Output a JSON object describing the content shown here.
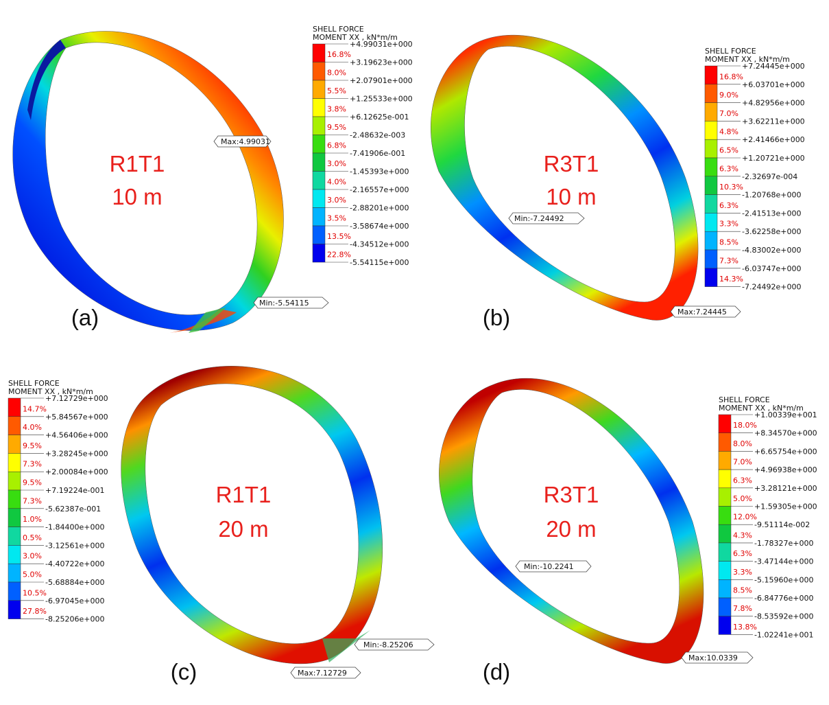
{
  "colors": {
    "legend_bands": [
      "#ff0000",
      "#ff5a00",
      "#ffaa00",
      "#ffff00",
      "#a8f000",
      "#38dd10",
      "#10c840",
      "#10d8a0",
      "#00e8f0",
      "#00b4ff",
      "#0060ff",
      "#0000ee"
    ]
  },
  "panels": [
    {
      "id": "a",
      "letter": "(a)",
      "ring_name": "R1T1",
      "ring_size": "10 m",
      "legend": {
        "title_line1": "SHELL FORCE",
        "title_line2": "MOMENT XX , kN*m/m",
        "values": [
          "+4.99031e+000",
          "+3.19623e+000",
          "+2.07901e+000",
          "+1.25533e+000",
          "+6.12625e-001",
          "-2.48632e-003",
          "-7.41906e-001",
          "-1.45393e+000",
          "-2.16557e+000",
          "-2.88201e+000",
          "-3.58674e+000",
          "-4.34512e+000",
          "-5.54115e+000"
        ],
        "percents": [
          "16.8%",
          "8.0%",
          "5.5%",
          "3.8%",
          "9.5%",
          "6.8%",
          "3.0%",
          "4.0%",
          "3.0%",
          "3.5%",
          "13.5%",
          "22.8%"
        ]
      },
      "callouts": {
        "max": "Max:4.99031",
        "min": "Min:-5.54115"
      }
    },
    {
      "id": "b",
      "letter": "(b)",
      "ring_name": "R3T1",
      "ring_size": "10 m",
      "legend": {
        "title_line1": "SHELL FORCE",
        "title_line2": "MOMENT XX , kN*m/m",
        "values": [
          "+7.24445e+000",
          "+6.03701e+000",
          "+4.82956e+000",
          "+3.62211e+000",
          "+2.41466e+000",
          "+1.20721e+000",
          "-2.32697e-004",
          "-1.20768e+000",
          "-2.41513e+000",
          "-3.62258e+000",
          "-4.83002e+000",
          "-6.03747e+000",
          "-7.24492e+000"
        ],
        "percents": [
          "16.8%",
          "9.0%",
          "7.0%",
          "4.8%",
          "6.5%",
          "6.3%",
          "10.3%",
          "6.3%",
          "3.3%",
          "8.5%",
          "7.3%",
          "14.3%"
        ]
      },
      "callouts": {
        "max": "Max:7.24445",
        "min": "Min:-7.24492"
      }
    },
    {
      "id": "c",
      "letter": "(c)",
      "ring_name": "R1T1",
      "ring_size": "20 m",
      "legend": {
        "title_line1": "SHELL FORCE",
        "title_line2": "MOMENT XX , kN*m/m",
        "values": [
          "+7.12729e+000",
          "+5.84567e+000",
          "+4.56406e+000",
          "+3.28245e+000",
          "+2.00084e+000",
          "+7.19224e-001",
          "-5.62387e-001",
          "-1.84400e+000",
          "-3.12561e+000",
          "-4.40722e+000",
          "-5.68884e+000",
          "-6.97045e+000",
          "-8.25206e+000"
        ],
        "percents": [
          "14.7%",
          "4.0%",
          "9.5%",
          "7.3%",
          "9.5%",
          "7.3%",
          "1.0%",
          "0.5%",
          "3.0%",
          "5.0%",
          "10.5%",
          "27.8%"
        ]
      },
      "callouts": {
        "max": "Max:7.12729",
        "min": "Min:-8.25206"
      }
    },
    {
      "id": "d",
      "letter": "(d)",
      "ring_name": "R3T1",
      "ring_size": "20 m",
      "legend": {
        "title_line1": "SHELL FORCE",
        "title_line2": "MOMENT XX , kN*m/m",
        "values": [
          "+1.00339e+001",
          "+8.34570e+000",
          "+6.65754e+000",
          "+4.96938e+000",
          "+3.28121e+000",
          "+1.59305e+000",
          "-9.51114e-002",
          "-1.78327e+000",
          "-3.47144e+000",
          "-5.15960e+000",
          "-6.84776e+000",
          "-8.53592e+000",
          "-1.02241e+001"
        ],
        "percents": [
          "18.0%",
          "8.0%",
          "7.0%",
          "6.3%",
          "5.0%",
          "12.0%",
          "4.3%",
          "6.3%",
          "3.3%",
          "8.5%",
          "7.8%",
          "13.8%"
        ]
      },
      "callouts": {
        "max": "Max:10.0339",
        "min": "Min:-10.2241"
      }
    }
  ]
}
